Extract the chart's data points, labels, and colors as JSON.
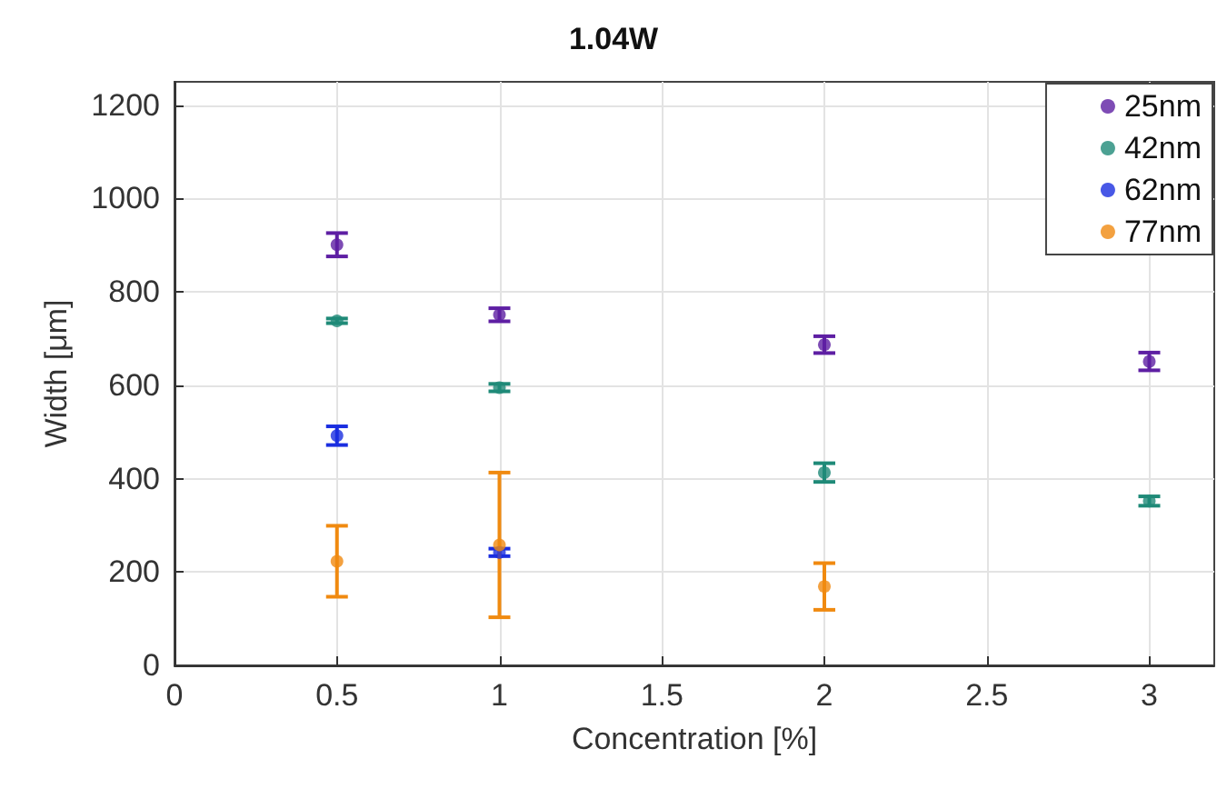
{
  "chart_data": {
    "type": "scatter",
    "title": "1.04W",
    "xlabel": "Concentration [%]",
    "ylabel": "Width [μm]",
    "x": [
      0.5,
      1,
      2,
      3
    ],
    "series": [
      {
        "name": "25nm",
        "color": "#5e1fa3",
        "values": [
          901,
          751,
          687,
          651
        ],
        "errors": [
          25,
          14,
          18,
          19
        ]
      },
      {
        "name": "42nm",
        "color": "#1f8a78",
        "values": [
          738,
          595,
          413,
          352
        ],
        "errors": [
          5,
          8,
          20,
          10
        ]
      },
      {
        "name": "62nm",
        "color": "#1a2ee0",
        "values": [
          492,
          242,
          null,
          null
        ],
        "errors": [
          20,
          8,
          null,
          null
        ]
      },
      {
        "name": "77nm",
        "color": "#f08a10",
        "values": [
          223,
          258,
          169,
          null
        ],
        "errors": [
          76,
          155,
          50,
          null
        ]
      }
    ],
    "xlim": [
      0,
      3.2
    ],
    "xticks": [
      0,
      0.5,
      1,
      1.5,
      2,
      2.5,
      3
    ],
    "ylim": [
      0,
      1250
    ],
    "yticks": [
      0,
      200,
      400,
      600,
      800,
      1000,
      1200
    ],
    "grid": true,
    "legend": "top right",
    "marker": "circle"
  }
}
